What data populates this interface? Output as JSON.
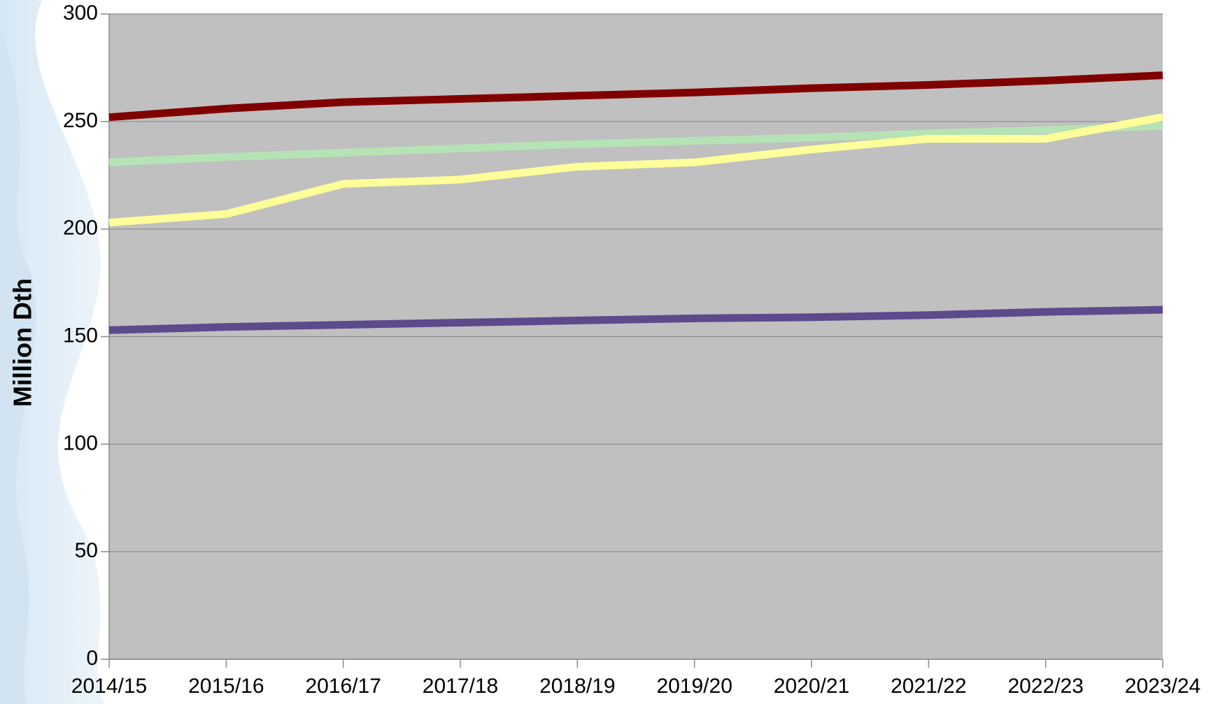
{
  "chart_data": {
    "type": "line",
    "y_label": "Million Dth",
    "categories": [
      "2014/15",
      "2015/16",
      "2016/17",
      "2017/18",
      "2018/19",
      "2019/20",
      "2020/21",
      "2021/22",
      "2022/23",
      "2023/24"
    ],
    "series": [
      {
        "color": "#b5e3b5",
        "values": [
          231,
          233.5,
          235.5,
          237.5,
          239.5,
          241,
          242.5,
          244.5,
          246,
          248
        ]
      },
      {
        "color": "#ffff99",
        "values": [
          203,
          207,
          221,
          223,
          229,
          231,
          237,
          242,
          242,
          252
        ]
      },
      {
        "color": "#800000",
        "values": [
          252,
          256,
          259,
          260.5,
          262,
          263.5,
          265.5,
          267,
          269,
          271.5
        ]
      },
      {
        "color": "#5c4a8c",
        "values": [
          153,
          154.5,
          155.5,
          156.5,
          157.5,
          158.5,
          159,
          160,
          161.5,
          162.5
        ]
      }
    ],
    "ylim": [
      0,
      300
    ],
    "yticks": [
      0,
      50,
      100,
      150,
      200,
      250,
      300
    ],
    "grid": true
  }
}
